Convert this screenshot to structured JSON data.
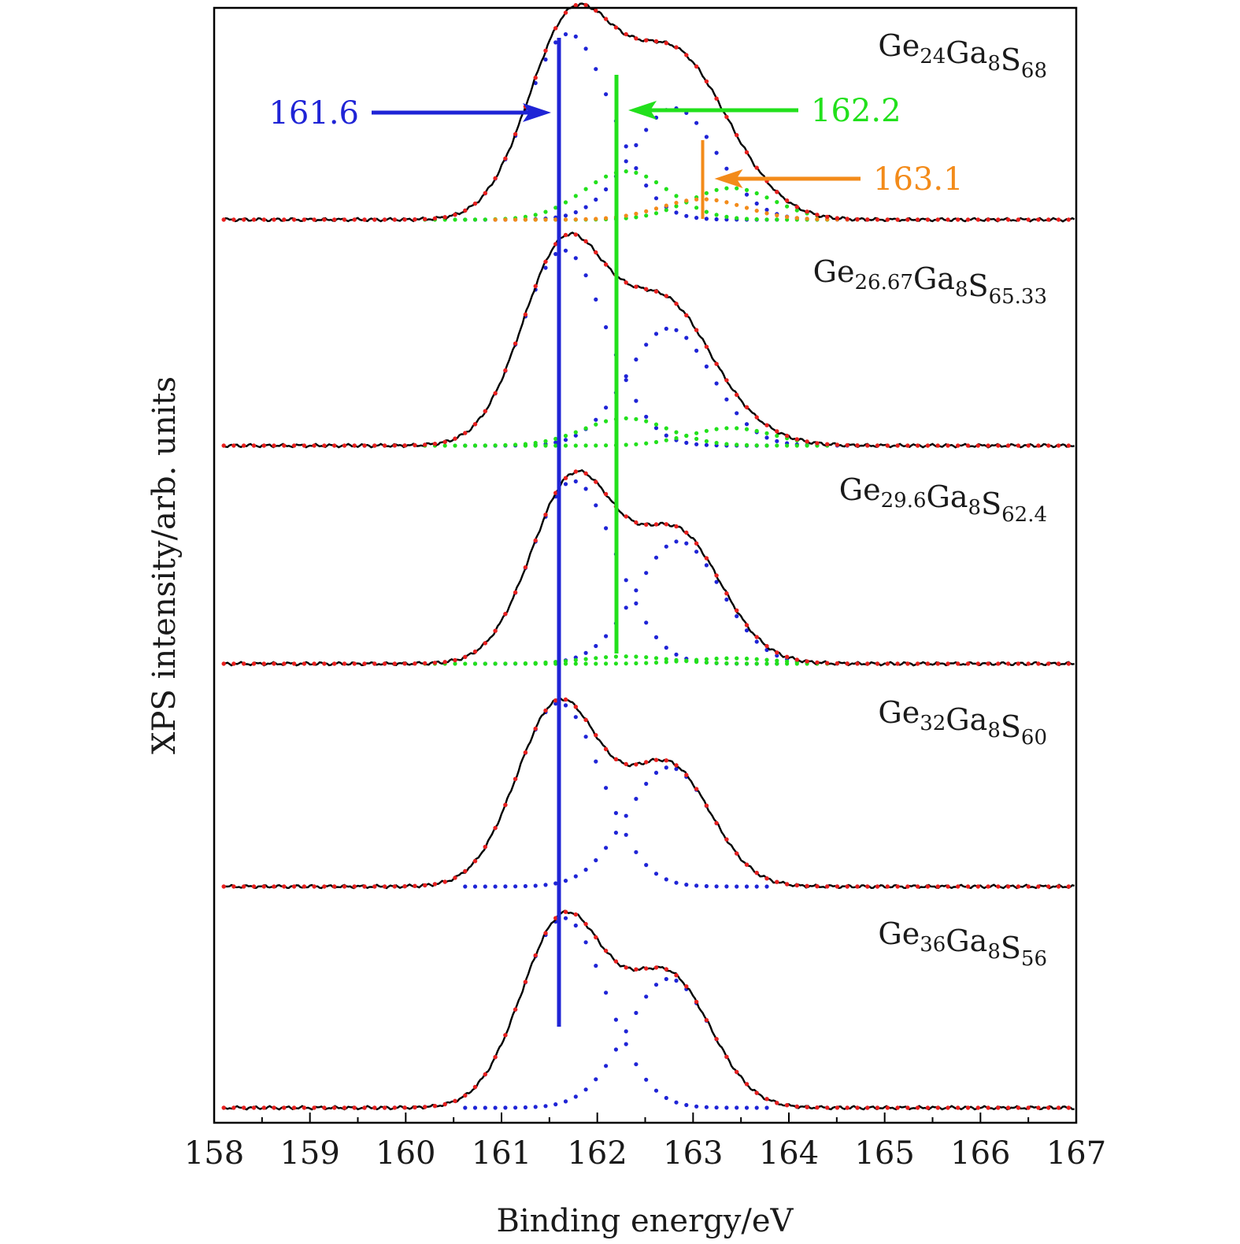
{
  "chart_data": {
    "type": "line",
    "title": "",
    "xlabel": "Binding energy/eV",
    "ylabel": "XPS intensity/arb. units",
    "xlim": [
      158,
      167
    ],
    "xticks": [
      "158",
      "159",
      "160",
      "161",
      "162",
      "163",
      "164",
      "165",
      "166",
      "167"
    ],
    "y_ticks_shown": false,
    "grid": false,
    "legend": "none",
    "styles": {
      "measured": "#000000",
      "fit_envelope": "#e8201e",
      "component_161_6": "#1f24d6",
      "component_162_2": "#22e01c",
      "component_163_1": "#f38b1a"
    },
    "panels": [
      {
        "label": [
          {
            "t": "Ge"
          },
          {
            "t": "24",
            "sub": true
          },
          {
            "t": "Ga"
          },
          {
            "t": "8",
            "sub": true
          },
          {
            "t": "S"
          },
          {
            "t": "68",
            "sub": true
          }
        ],
        "components": [
          {
            "position": 161.7,
            "amplitude": 1.0,
            "color": "#1f24d6"
          },
          {
            "position": 162.8,
            "amplitude": 0.6,
            "color": "#1f24d6"
          },
          {
            "position": 162.3,
            "amplitude": 0.26,
            "color": "#22e01c"
          },
          {
            "position": 163.4,
            "amplitude": 0.17,
            "color": "#22e01c"
          },
          {
            "position": 163.1,
            "amplitude": 0.11,
            "color": "#f38b1a"
          }
        ]
      },
      {
        "label": [
          {
            "t": "Ge"
          },
          {
            "t": "26.67",
            "sub": true
          },
          {
            "t": "Ga"
          },
          {
            "t": "8",
            "sub": true
          },
          {
            "t": "S"
          },
          {
            "t": "65.33",
            "sub": true
          }
        ],
        "components": [
          {
            "position": 161.65,
            "amplitude": 1.0,
            "color": "#1f24d6"
          },
          {
            "position": 162.75,
            "amplitude": 0.6,
            "color": "#1f24d6"
          },
          {
            "position": 162.3,
            "amplitude": 0.14,
            "color": "#22e01c"
          },
          {
            "position": 163.4,
            "amplitude": 0.09,
            "color": "#22e01c"
          }
        ]
      },
      {
        "label": [
          {
            "t": "Ge"
          },
          {
            "t": "29.6",
            "sub": true
          },
          {
            "t": "Ga"
          },
          {
            "t": "8",
            "sub": true
          },
          {
            "t": "S"
          },
          {
            "t": "62.4",
            "sub": true
          }
        ],
        "components": [
          {
            "position": 161.75,
            "amplitude": 1.0,
            "color": "#1f24d6"
          },
          {
            "position": 162.85,
            "amplitude": 0.67,
            "color": "#1f24d6"
          },
          {
            "position": 162.3,
            "amplitude": 0.04,
            "color": "#22e01c"
          },
          {
            "position": 163.4,
            "amplitude": 0.03,
            "color": "#22e01c"
          }
        ]
      },
      {
        "label": [
          {
            "t": "Ge"
          },
          {
            "t": "32",
            "sub": true
          },
          {
            "t": "Ga"
          },
          {
            "t": "8",
            "sub": true
          },
          {
            "t": "S"
          },
          {
            "t": "60",
            "sub": true
          }
        ],
        "components": [
          {
            "position": 161.6,
            "amplitude": 1.0,
            "color": "#1f24d6"
          },
          {
            "position": 162.75,
            "amplitude": 0.65,
            "color": "#1f24d6"
          }
        ]
      },
      {
        "label": [
          {
            "t": "Ge"
          },
          {
            "t": "36",
            "sub": true
          },
          {
            "t": "Ga"
          },
          {
            "t": "8",
            "sub": true
          },
          {
            "t": "S"
          },
          {
            "t": "56",
            "sub": true
          }
        ],
        "components": [
          {
            "position": 161.65,
            "amplitude": 1.0,
            "color": "#1f24d6"
          },
          {
            "position": 162.75,
            "amplitude": 0.68,
            "color": "#1f24d6"
          }
        ]
      }
    ],
    "reference_lines": [
      {
        "value": 161.6,
        "color": "#1f24d6",
        "from_panel": 0,
        "to_panel": 4
      },
      {
        "value": 162.2,
        "color": "#22e01c",
        "from_panel": 0,
        "to_panel": 2
      },
      {
        "value": 163.1,
        "color": "#f38b1a",
        "from_panel": 0,
        "to_panel": 0
      }
    ],
    "annotations": [
      {
        "text": "161.6",
        "color": "#1f24d6",
        "points_to": 161.6,
        "from_side": "left"
      },
      {
        "text": "162.2",
        "color": "#22e01c",
        "points_to": 162.2,
        "from_side": "right"
      },
      {
        "text": "163.1",
        "color": "#f38b1a",
        "points_to": 163.1,
        "from_side": "right"
      }
    ]
  }
}
